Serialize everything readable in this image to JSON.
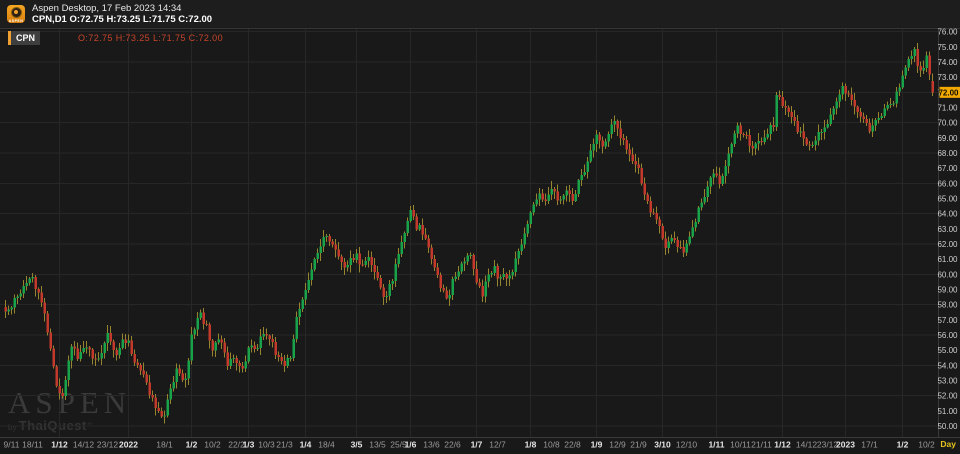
{
  "topbar": {
    "app_title": "Aspen Desktop, 17 Feb 2023 14:34",
    "symbol_line": "CPN,D1 O:72.75 H:73.25 L:71.75 C:72.00",
    "logo_text": "ASPEN"
  },
  "overlay": {
    "symbol_badge": "CPN",
    "ohlc_text": "O:72.75 H:73.25 L:71.75 C:72.00"
  },
  "watermark": {
    "brand": "ASPEN",
    "byline_prefix": "by",
    "byline_brand": "ThaiQuest",
    "trademark": "™"
  },
  "axis": {
    "period_label": "Day"
  },
  "chart_data": {
    "type": "candlestick",
    "symbol": "CPN",
    "interval": "D1",
    "last_ohlc": {
      "open": 72.75,
      "high": 73.25,
      "low": 71.75,
      "close": 72.0
    },
    "y_axis": {
      "min": 50,
      "max": 76,
      "label_step": 1,
      "grid_step": 2,
      "decimals": 2
    },
    "candle_count": 310,
    "x_labels": [
      {
        "label": "9/11",
        "i": 2,
        "major": false
      },
      {
        "label": "18/11",
        "i": 9,
        "major": false
      },
      {
        "label": "1/12",
        "i": 18,
        "major": true
      },
      {
        "label": "14/12",
        "i": 26,
        "major": false
      },
      {
        "label": "23/12",
        "i": 34,
        "major": false
      },
      {
        "label": "2022",
        "i": 41,
        "major": true
      },
      {
        "label": "18/1",
        "i": 53,
        "major": false
      },
      {
        "label": "1/2",
        "i": 62,
        "major": true
      },
      {
        "label": "10/2",
        "i": 69,
        "major": false
      },
      {
        "label": "22/2",
        "i": 77,
        "major": false
      },
      {
        "label": "1/3",
        "i": 81,
        "major": true
      },
      {
        "label": "10/3",
        "i": 87,
        "major": false
      },
      {
        "label": "21/3",
        "i": 93,
        "major": false
      },
      {
        "label": "1/4",
        "i": 100,
        "major": true
      },
      {
        "label": "18/4",
        "i": 107,
        "major": false
      },
      {
        "label": "3/5",
        "i": 117,
        "major": true
      },
      {
        "label": "13/5",
        "i": 124,
        "major": false
      },
      {
        "label": "25/5",
        "i": 131,
        "major": false
      },
      {
        "label": "1/6",
        "i": 135,
        "major": true
      },
      {
        "label": "13/6",
        "i": 142,
        "major": false
      },
      {
        "label": "22/6",
        "i": 149,
        "major": false
      },
      {
        "label": "1/7",
        "i": 157,
        "major": true
      },
      {
        "label": "12/7",
        "i": 164,
        "major": false
      },
      {
        "label": "1/8",
        "i": 175,
        "major": true
      },
      {
        "label": "10/8",
        "i": 182,
        "major": false
      },
      {
        "label": "22/8",
        "i": 189,
        "major": false
      },
      {
        "label": "1/9",
        "i": 197,
        "major": true
      },
      {
        "label": "12/9",
        "i": 204,
        "major": false
      },
      {
        "label": "21/9",
        "i": 211,
        "major": false
      },
      {
        "label": "3/10",
        "i": 219,
        "major": true
      },
      {
        "label": "12/10",
        "i": 227,
        "major": false
      },
      {
        "label": "1/11",
        "i": 237,
        "major": true
      },
      {
        "label": "10/11",
        "i": 245,
        "major": false
      },
      {
        "label": "21/11",
        "i": 252,
        "major": false
      },
      {
        "label": "1/12",
        "i": 259,
        "major": true
      },
      {
        "label": "14/12",
        "i": 267,
        "major": false
      },
      {
        "label": "23/12",
        "i": 274,
        "major": false
      },
      {
        "label": "2023",
        "i": 280,
        "major": true
      },
      {
        "label": "17/1",
        "i": 288,
        "major": false
      },
      {
        "label": "1/2",
        "i": 299,
        "major": true
      },
      {
        "label": "10/2",
        "i": 307,
        "major": false
      }
    ],
    "close_anchors": [
      [
        0,
        57.4
      ],
      [
        3,
        58.4
      ],
      [
        6,
        59.2
      ],
      [
        9,
        59.9
      ],
      [
        11,
        58.6
      ],
      [
        13,
        57.2
      ],
      [
        15,
        55.0
      ],
      [
        17,
        52.8
      ],
      [
        19,
        51.8
      ],
      [
        20,
        52.9
      ],
      [
        21,
        54.4
      ],
      [
        22,
        55.2
      ],
      [
        24,
        54.6
      ],
      [
        27,
        55.2
      ],
      [
        30,
        54.4
      ],
      [
        32,
        54.9
      ],
      [
        34,
        55.9
      ],
      [
        37,
        54.7
      ],
      [
        39,
        55.6
      ],
      [
        41,
        55.7
      ],
      [
        43,
        54.2
      ],
      [
        46,
        53.4
      ],
      [
        48,
        52.2
      ],
      [
        51,
        51.0
      ],
      [
        53,
        50.7
      ],
      [
        55,
        52.4
      ],
      [
        57,
        53.6
      ],
      [
        60,
        53.0
      ],
      [
        62,
        55.8
      ],
      [
        65,
        57.4
      ],
      [
        67,
        56.5
      ],
      [
        69,
        55.2
      ],
      [
        71,
        55.9
      ],
      [
        74,
        54.1
      ],
      [
        77,
        54.4
      ],
      [
        79,
        53.7
      ],
      [
        81,
        55.0
      ],
      [
        84,
        55.4
      ],
      [
        87,
        56.2
      ],
      [
        90,
        54.9
      ],
      [
        93,
        54.2
      ],
      [
        95,
        54.5
      ],
      [
        97,
        57.4
      ],
      [
        99,
        58.3
      ],
      [
        101,
        59.4
      ],
      [
        103,
        60.8
      ],
      [
        105,
        62.0
      ],
      [
        107,
        62.6
      ],
      [
        109,
        62.0
      ],
      [
        111,
        61.4
      ],
      [
        113,
        60.6
      ],
      [
        115,
        60.9
      ],
      [
        117,
        61.2
      ],
      [
        119,
        60.4
      ],
      [
        121,
        60.9
      ],
      [
        123,
        60.2
      ],
      [
        125,
        58.9
      ],
      [
        127,
        58.5
      ],
      [
        129,
        59.8
      ],
      [
        131,
        61.2
      ],
      [
        133,
        62.6
      ],
      [
        135,
        64.0
      ],
      [
        137,
        63.2
      ],
      [
        139,
        62.8
      ],
      [
        141,
        61.8
      ],
      [
        143,
        60.6
      ],
      [
        145,
        59.2
      ],
      [
        147,
        58.2
      ],
      [
        149,
        59.5
      ],
      [
        151,
        60.3
      ],
      [
        153,
        61.0
      ],
      [
        155,
        61.5
      ],
      [
        157,
        59.5
      ],
      [
        159,
        58.7
      ],
      [
        161,
        59.9
      ],
      [
        163,
        60.4
      ],
      [
        164,
        59.6
      ],
      [
        166,
        60.0
      ],
      [
        168,
        59.8
      ],
      [
        170,
        60.9
      ],
      [
        172,
        61.9
      ],
      [
        174,
        63.2
      ],
      [
        176,
        64.6
      ],
      [
        178,
        65.3
      ],
      [
        180,
        65.0
      ],
      [
        182,
        65.7
      ],
      [
        184,
        64.9
      ],
      [
        186,
        65.4
      ],
      [
        189,
        65.1
      ],
      [
        191,
        66.0
      ],
      [
        193,
        66.8
      ],
      [
        195,
        68.3
      ],
      [
        197,
        69.0
      ],
      [
        199,
        68.5
      ],
      [
        201,
        69.3
      ],
      [
        203,
        70.2
      ],
      [
        205,
        69.0
      ],
      [
        207,
        68.4
      ],
      [
        209,
        67.6
      ],
      [
        211,
        66.8
      ],
      [
        213,
        65.3
      ],
      [
        215,
        64.3
      ],
      [
        217,
        63.8
      ],
      [
        219,
        62.5
      ],
      [
        220,
        61.7
      ],
      [
        222,
        62.6
      ],
      [
        224,
        61.9
      ],
      [
        226,
        61.6
      ],
      [
        228,
        62.6
      ],
      [
        230,
        63.6
      ],
      [
        232,
        64.8
      ],
      [
        234,
        65.8
      ],
      [
        236,
        66.5
      ],
      [
        238,
        66.2
      ],
      [
        240,
        67.0
      ],
      [
        242,
        68.6
      ],
      [
        244,
        69.9
      ],
      [
        245,
        69.5
      ],
      [
        247,
        69.0
      ],
      [
        249,
        68.2
      ],
      [
        251,
        68.6
      ],
      [
        253,
        69.2
      ],
      [
        255,
        69.6
      ],
      [
        256,
        69.9
      ],
      [
        257,
        72.0
      ],
      [
        259,
        71.2
      ],
      [
        261,
        70.7
      ],
      [
        263,
        70.0
      ],
      [
        265,
        69.2
      ],
      [
        267,
        68.4
      ],
      [
        269,
        68.7
      ],
      [
        271,
        69.2
      ],
      [
        273,
        69.8
      ],
      [
        275,
        70.4
      ],
      [
        277,
        71.2
      ],
      [
        279,
        72.3
      ],
      [
        280,
        71.9
      ],
      [
        282,
        71.3
      ],
      [
        284,
        70.8
      ],
      [
        286,
        70.1
      ],
      [
        288,
        69.5
      ],
      [
        290,
        70.2
      ],
      [
        292,
        70.6
      ],
      [
        294,
        71.0
      ],
      [
        296,
        71.5
      ],
      [
        298,
        72.5
      ],
      [
        300,
        73.8
      ],
      [
        302,
        74.6
      ],
      [
        303,
        74.9
      ],
      [
        304,
        73.9
      ],
      [
        305,
        73.3
      ],
      [
        306,
        73.8
      ],
      [
        307,
        74.2
      ],
      [
        308,
        73.3
      ],
      [
        309,
        72.0
      ]
    ],
    "colors": {
      "up": "#18a24a",
      "down": "#c33a2c",
      "wick": "#97842f",
      "grid": "#272727",
      "axis_line": "#3a3a3a",
      "y_label": "#cfcfcf",
      "x_label_minor": "#9a9a9a",
      "x_label_major": "#e6e6e6",
      "last_tag_bg": "#f2a900",
      "last_tag_text": "#141000",
      "period": "#e5c51f",
      "overlay_ohlc": "#c9442a"
    }
  }
}
